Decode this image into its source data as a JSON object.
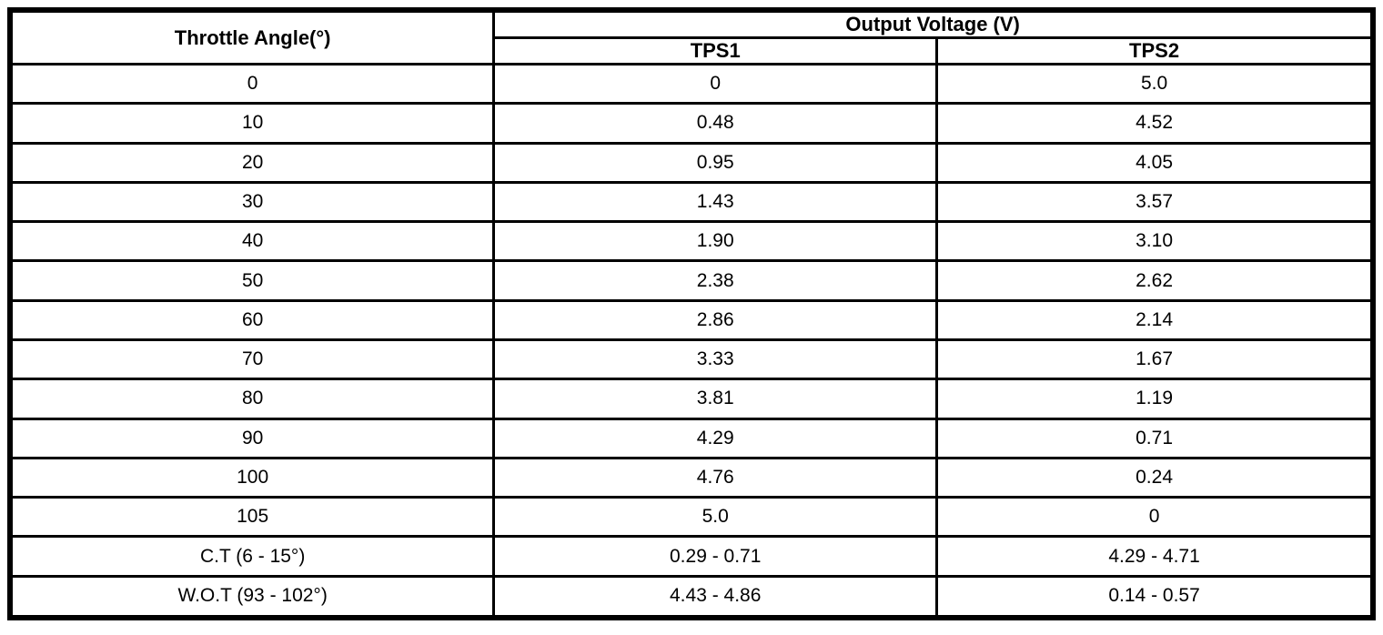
{
  "table": {
    "header": {
      "throttle_angle": "Throttle Angle(°)",
      "output_voltage": "Output Voltage (V)",
      "tps1": "TPS1",
      "tps2": "TPS2"
    },
    "rows": [
      {
        "angle": "0",
        "tps1": "0",
        "tps2": "5.0"
      },
      {
        "angle": "10",
        "tps1": "0.48",
        "tps2": "4.52"
      },
      {
        "angle": "20",
        "tps1": "0.95",
        "tps2": "4.05"
      },
      {
        "angle": "30",
        "tps1": "1.43",
        "tps2": "3.57"
      },
      {
        "angle": "40",
        "tps1": "1.90",
        "tps2": "3.10"
      },
      {
        "angle": "50",
        "tps1": "2.38",
        "tps2": "2.62"
      },
      {
        "angle": "60",
        "tps1": "2.86",
        "tps2": "2.14"
      },
      {
        "angle": "70",
        "tps1": "3.33",
        "tps2": "1.67"
      },
      {
        "angle": "80",
        "tps1": "3.81",
        "tps2": "1.19"
      },
      {
        "angle": "90",
        "tps1": "4.29",
        "tps2": "0.71"
      },
      {
        "angle": "100",
        "tps1": "4.76",
        "tps2": "0.24"
      },
      {
        "angle": "105",
        "tps1": "5.0",
        "tps2": "0"
      },
      {
        "angle": "C.T (6 - 15°)",
        "tps1": "0.29 - 0.71",
        "tps2": "4.29 - 4.71"
      },
      {
        "angle": "W.O.T (93 - 102°)",
        "tps1": "4.43 - 4.86",
        "tps2": "0.14 - 0.57"
      }
    ],
    "colors": {
      "border": "#000000",
      "background": "#ffffff",
      "text": "#000000"
    }
  }
}
